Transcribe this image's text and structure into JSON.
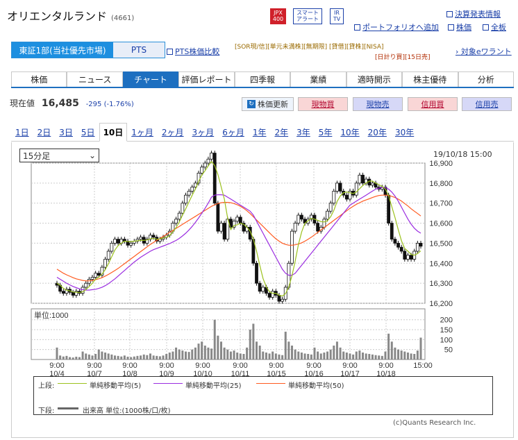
{
  "header": {
    "company": "オリエンタルランド",
    "code": "(4661)",
    "icon_jpx": "JPX 400",
    "icon_alert": "スマート アラート",
    "icon_ir": "IR TV",
    "link_report": "決算発表情報",
    "link_portfolio": "ポートフォリオへ追加",
    "link_price": "株価",
    "link_board": "全板"
  },
  "market": {
    "selected": "東証1部(当社優先市場)",
    "pts": "PTS",
    "pts_compare": "PTS株価比較"
  },
  "tags": {
    "row1": "[SOR現/信][単元未満株][無期限] [貸借][貸株][NISA]",
    "row2": "[日計り買][15日売]",
    "warrant": "対象eワラント"
  },
  "tabs": [
    "株価",
    "ニュース",
    "チャート",
    "評価レポート",
    "四季報",
    "業績",
    "適時開示",
    "株主優待",
    "分析"
  ],
  "price": {
    "label": "現在値",
    "value": "16,485",
    "change": "-295 (-1.76%)"
  },
  "actions": {
    "refresh": "株価更新",
    "spot_buy": "現物買",
    "spot_sell": "現物売",
    "margin_buy": "信用買",
    "margin_sell": "信用売"
  },
  "periods": [
    "1日",
    "2日",
    "3日",
    "5日",
    "10日",
    "1ヶ月",
    "2ヶ月",
    "3ヶ月",
    "6ヶ月",
    "1年",
    "2年",
    "3年",
    "5年",
    "10年",
    "20年",
    "30年"
  ],
  "chart": {
    "interval": "15分足",
    "timestamp": "19/10/18 15:00",
    "unit": "単位:1000",
    "copyright": "(c)Quants Research Inc."
  },
  "legend": {
    "upper": "上段:",
    "ma5": "単純移動平均(5)",
    "ma25": "単純移動平均(25)",
    "ma50": "単純移動平均(50)",
    "lower": "下段:",
    "vol": "出来高 単位:(1000株/口/枚)"
  },
  "colors": {
    "ma5": "#9bc11d",
    "ma25": "#9a2ce0",
    "ma50": "#ff5a1f",
    "up": "#ffffff",
    "down": "#111111",
    "volume": "#888888"
  },
  "chart_data": {
    "type": "candlestick",
    "ylim": [
      16200,
      16900
    ],
    "yticks": [
      16200,
      16300,
      16400,
      16500,
      16600,
      16700,
      16800,
      16900
    ],
    "vol_ticks": [
      50,
      100,
      150,
      200
    ],
    "x_labels": [
      {
        "t": "9:00",
        "d": "10/4"
      },
      {
        "t": "9:00",
        "d": "10/7"
      },
      {
        "t": "9:00",
        "d": "10/8"
      },
      {
        "t": "9:00",
        "d": "10/9"
      },
      {
        "t": "9:00",
        "d": "10/10"
      },
      {
        "t": "9:00",
        "d": "10/11"
      },
      {
        "t": "9:00",
        "d": "10/15"
      },
      {
        "t": "9:00",
        "d": "10/16"
      },
      {
        "t": "9:00",
        "d": "10/17"
      },
      {
        "t": "9:00",
        "d": "10/18"
      },
      {
        "t": "15:00",
        "d": ""
      }
    ],
    "close": [
      16290,
      16260,
      16250,
      16270,
      16255,
      16240,
      16260,
      16250,
      16280,
      16300,
      16320,
      16330,
      16350,
      16340,
      16380,
      16420,
      16460,
      16500,
      16520,
      16500,
      16520,
      16510,
      16490,
      16500,
      16510,
      16520,
      16530,
      16500,
      16520,
      16540,
      16530,
      16510,
      16520,
      16530,
      16540,
      16560,
      16600,
      16620,
      16650,
      16700,
      16740,
      16760,
      16780,
      16800,
      16850,
      16880,
      16900,
      16920,
      16950,
      16700,
      16560,
      16600,
      16520,
      16620,
      16580,
      16610,
      16630,
      16600,
      16560,
      16580,
      16520,
      16400,
      16300,
      16260,
      16280,
      16250,
      16230,
      16260,
      16240,
      16210,
      16220,
      16280,
      16400,
      16560,
      16600,
      16640,
      16620,
      16600,
      16620,
      16640,
      16600,
      16560,
      16580,
      16620,
      16660,
      16700,
      16760,
      16800,
      16760,
      16740,
      16720,
      16760,
      16740,
      16800,
      16840,
      16800,
      16820,
      16790,
      16800,
      16780,
      16770,
      16780,
      16740,
      16600,
      16520,
      16500,
      16480,
      16460,
      16420,
      16440,
      16420,
      16460,
      16500,
      16485
    ],
    "volume": [
      60,
      20,
      15,
      18,
      12,
      10,
      14,
      12,
      40,
      30,
      25,
      20,
      28,
      50,
      40,
      35,
      30,
      25,
      20,
      18,
      15,
      20,
      14,
      12,
      15,
      18,
      20,
      25,
      22,
      30,
      20,
      18,
      16,
      20,
      28,
      35,
      40,
      60,
      50,
      45,
      40,
      38,
      50,
      60,
      80,
      90,
      70,
      60,
      55,
      200,
      120,
      90,
      60,
      50,
      40,
      45,
      35,
      30,
      28,
      60,
      150,
      180,
      90,
      70,
      40,
      35,
      30,
      40,
      30,
      25,
      22,
      140,
      90,
      70,
      50,
      40,
      35,
      30,
      28,
      25,
      60,
      40,
      30,
      35,
      40,
      50,
      70,
      90,
      60,
      40,
      35,
      30,
      25,
      40,
      45,
      35,
      30,
      28,
      25,
      22,
      20,
      18,
      40,
      130,
      90,
      60,
      50,
      45,
      40,
      35,
      30,
      28,
      45,
      110
    ],
    "ma5": [
      16300,
      16290,
      16275,
      16265,
      16262,
      16256,
      16255,
      16253,
      16258,
      16268,
      16284,
      16300,
      16320,
      16332,
      16346,
      16368,
      16398,
      16432,
      16466,
      16488,
      16500,
      16510,
      16508,
      16508,
      16510,
      16512,
      16514,
      16514,
      16516,
      16522,
      16524,
      16520,
      16522,
      16526,
      16530,
      16538,
      16556,
      16578,
      16606,
      16640,
      16672,
      16706,
      16740,
      16770,
      16808,
      16840,
      16862,
      16886,
      16908,
      16888,
      16842,
      16782,
      16720,
      16626,
      16568,
      16588,
      16592,
      16600,
      16594,
      16580,
      16560,
      16520,
      16460,
      16390,
      16324,
      16282,
      16258,
      16250,
      16250,
      16240,
      16236,
      16248,
      16282,
      16338,
      16412,
      16494,
      16556,
      16600,
      16612,
      16624,
      16620,
      16614,
      16608,
      16606,
      16612,
      16632,
      16664,
      16708,
      16736,
      16752,
      16756,
      16752,
      16748,
      16756,
      16772,
      16788,
      16800,
      16810,
      16810,
      16800,
      16792,
      16784,
      16770,
      16738,
      16682,
      16628,
      16568,
      16512,
      16474,
      16460,
      16444,
      16440,
      16448,
      16462
    ],
    "ma25": [
      16330,
      16320,
      16310,
      16300,
      16292,
      16284,
      16278,
      16272,
      16268,
      16266,
      16266,
      16268,
      16270,
      16274,
      16280,
      16288,
      16298,
      16310,
      16322,
      16336,
      16350,
      16364,
      16378,
      16392,
      16406,
      16418,
      16430,
      16440,
      16450,
      16460,
      16468,
      16474,
      16480,
      16486,
      16492,
      16498,
      16506,
      16514,
      16524,
      16536,
      16550,
      16566,
      16584,
      16604,
      16626,
      16650,
      16674,
      16700,
      16730,
      16740,
      16742,
      16742,
      16740,
      16730,
      16720,
      16710,
      16700,
      16690,
      16680,
      16670,
      16660,
      16640,
      16610,
      16580,
      16550,
      16520,
      16490,
      16460,
      16430,
      16400,
      16370,
      16350,
      16340,
      16340,
      16350,
      16370,
      16390,
      16410,
      16430,
      16450,
      16470,
      16490,
      16510,
      16530,
      16550,
      16570,
      16590,
      16610,
      16630,
      16650,
      16670,
      16690,
      16700,
      16710,
      16720,
      16730,
      16740,
      16750,
      16760,
      16770,
      16775,
      16778,
      16778,
      16770,
      16755,
      16735,
      16710,
      16680,
      16650,
      16620,
      16595,
      16575,
      16560,
      16550
    ],
    "ma50": [
      16370,
      16360,
      16350,
      16342,
      16335,
      16328,
      16322,
      16318,
      16314,
      16312,
      16312,
      16314,
      16318,
      16322,
      16328,
      16336,
      16344,
      16354,
      16364,
      16374,
      16386,
      16398,
      16410,
      16422,
      16434,
      16446,
      16458,
      16470,
      16482,
      16494,
      16504,
      16514,
      16524,
      16534,
      16544,
      16554,
      16564,
      16574,
      16584,
      16594,
      16604,
      16614,
      16624,
      16634,
      16644,
      16654,
      16664,
      16674,
      16684,
      16692,
      16698,
      16702,
      16704,
      16704,
      16702,
      16698,
      16692,
      16684,
      16674,
      16662,
      16648,
      16632,
      16616,
      16600,
      16584,
      16568,
      16552,
      16536,
      16522,
      16510,
      16500,
      16494,
      16490,
      16490,
      16492,
      16496,
      16502,
      16510,
      16520,
      16530,
      16542,
      16554,
      16566,
      16578,
      16590,
      16602,
      16614,
      16626,
      16638,
      16650,
      16662,
      16674,
      16684,
      16694,
      16702,
      16710,
      16716,
      16722,
      16728,
      16734,
      16738,
      16740,
      16740,
      16738,
      16734,
      16728,
      16720,
      16710,
      16698,
      16686,
      16672,
      16660,
      16648,
      16636
    ]
  }
}
